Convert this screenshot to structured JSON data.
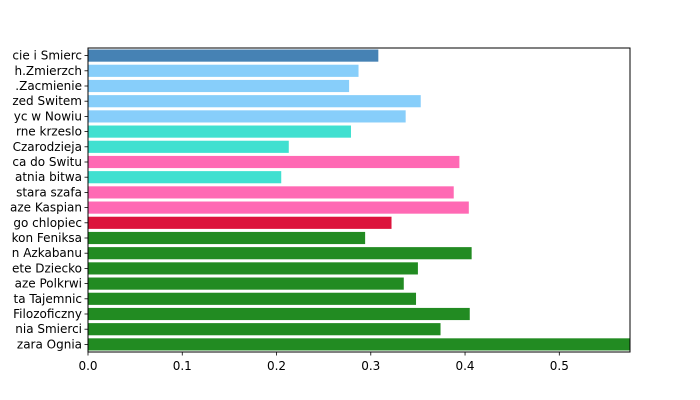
{
  "chart_data": {
    "type": "bar",
    "orientation": "horizontal",
    "title": "",
    "xlabel": "",
    "ylabel": "",
    "xlim": [
      0,
      0.575
    ],
    "xticks": [
      "0.0",
      "0.1",
      "0.2",
      "0.3",
      "0.4",
      "0.5"
    ],
    "grid": false,
    "categories": [
      "cie i Smierc",
      "h.Zmierzch",
      ".Zacmienie",
      "zed Switem",
      "yc w Nowiu",
      "rne krzeslo",
      "Czarodzieja",
      "ca do Switu",
      "atnia bitwa",
      "stara szafa",
      "aze Kaspian",
      "go chlopiec",
      "kon Feniksa",
      "n Azkabanu",
      "ete Dziecko",
      "aze Polkrwi",
      "ta Tajemnic",
      "Filozoficzny",
      "nia Smierci",
      "zara Ognia"
    ],
    "values": [
      0.308,
      0.287,
      0.277,
      0.353,
      0.337,
      0.279,
      0.213,
      0.394,
      0.205,
      0.388,
      0.404,
      0.322,
      0.294,
      0.407,
      0.35,
      0.335,
      0.348,
      0.405,
      0.374,
      0.575
    ],
    "colors": [
      "#4682b4",
      "#87cefa",
      "#87cefa",
      "#87cefa",
      "#87cefa",
      "#40e0d0",
      "#40e0d0",
      "#ff69b4",
      "#40e0d0",
      "#ff69b4",
      "#ff69b4",
      "#dc143c",
      "#228b22",
      "#228b22",
      "#228b22",
      "#228b22",
      "#228b22",
      "#228b22",
      "#228b22",
      "#228b22"
    ]
  }
}
